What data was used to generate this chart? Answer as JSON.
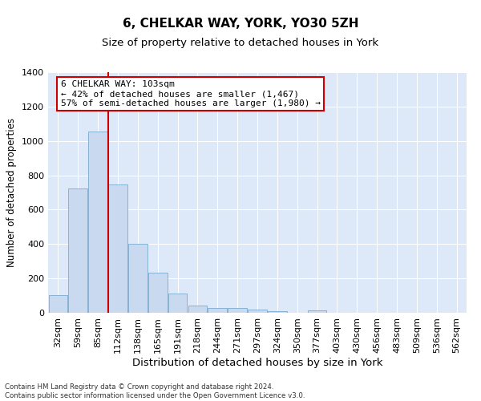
{
  "title": "6, CHELKAR WAY, YORK, YO30 5ZH",
  "subtitle": "Size of property relative to detached houses in York",
  "xlabel": "Distribution of detached houses by size in York",
  "ylabel": "Number of detached properties",
  "categories": [
    "32sqm",
    "59sqm",
    "85sqm",
    "112sqm",
    "138sqm",
    "165sqm",
    "191sqm",
    "218sqm",
    "244sqm",
    "271sqm",
    "297sqm",
    "324sqm",
    "350sqm",
    "377sqm",
    "403sqm",
    "430sqm",
    "456sqm",
    "483sqm",
    "509sqm",
    "536sqm",
    "562sqm"
  ],
  "values": [
    105,
    725,
    1055,
    748,
    400,
    235,
    112,
    42,
    27,
    27,
    18,
    10,
    0,
    12,
    0,
    0,
    0,
    0,
    0,
    0,
    0
  ],
  "bar_color": "#c8d9f0",
  "bar_edge_color": "#7aabcf",
  "vline_color": "#cc0000",
  "annotation_text": "6 CHELKAR WAY: 103sqm\n← 42% of detached houses are smaller (1,467)\n57% of semi-detached houses are larger (1,980) →",
  "annotation_box_color": "#ffffff",
  "annotation_box_edge": "#cc0000",
  "ylim": [
    0,
    1400
  ],
  "yticks": [
    0,
    200,
    400,
    600,
    800,
    1000,
    1200,
    1400
  ],
  "background_color": "#dde8f8",
  "grid_color": "#ffffff",
  "footnote": "Contains HM Land Registry data © Crown copyright and database right 2024.\nContains public sector information licensed under the Open Government Licence v3.0.",
  "title_fontsize": 11,
  "subtitle_fontsize": 9.5,
  "xlabel_fontsize": 9.5,
  "ylabel_fontsize": 8.5,
  "tick_fontsize": 8,
  "annot_fontsize": 8
}
